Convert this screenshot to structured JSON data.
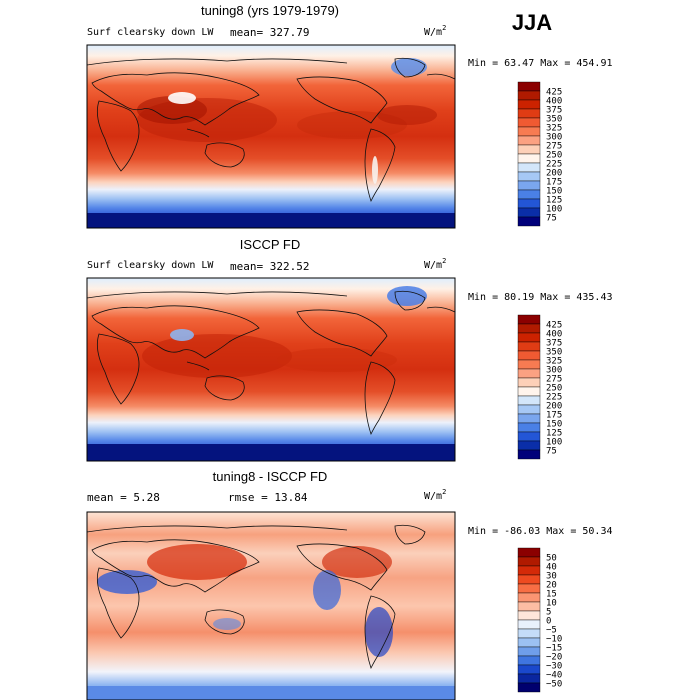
{
  "season": "JJA",
  "units_base": "W/m",
  "units_exp": "2",
  "colors": {
    "text": "#222222",
    "frame": "#000000",
    "coast": "#111111"
  },
  "panels": [
    {
      "id": "model",
      "title": "tuning8 (yrs 1979-1979)",
      "left_label": "Surf clearsky down LW",
      "mean_label": "mean= 327.79",
      "rmse_label": "",
      "minmax": "Min =  63.47 Max = 454.91",
      "kind": "abs"
    },
    {
      "id": "obs",
      "title": "ISCCP FD",
      "left_label": "Surf clearsky down LW",
      "mean_label": "mean= 322.52",
      "rmse_label": "",
      "minmax": "Min =  80.19 Max = 435.43",
      "kind": "abs"
    },
    {
      "id": "diff",
      "title": "tuning8 - ISCCP FD",
      "left_label": "mean =   5.28",
      "mean_label": "rmse =  13.84",
      "rmse_label": "",
      "minmax": "Min = -86.03 Max =  50.34",
      "kind": "diff"
    }
  ],
  "colorbars": {
    "abs": {
      "labels": [
        "425",
        "400",
        "375",
        "350",
        "325",
        "300",
        "275",
        "250",
        "225",
        "200",
        "175",
        "150",
        "125",
        "100",
        "75"
      ],
      "colors": [
        "#8b0000",
        "#b01a00",
        "#cc2200",
        "#e03c14",
        "#f05a32",
        "#f77b52",
        "#fba182",
        "#fdd0b8",
        "#fff4ec",
        "#d3e6fa",
        "#a6c8f5",
        "#7aa6ee",
        "#4a80e6",
        "#2356d6",
        "#0a2ea8",
        "#00007a"
      ]
    },
    "diff": {
      "labels": [
        "50",
        "40",
        "30",
        "20",
        "15",
        "10",
        "5",
        "0",
        "−5",
        "−10",
        "−15",
        "−20",
        "−30",
        "−40",
        "−50"
      ],
      "colors": [
        "#8b0000",
        "#b01a00",
        "#d42a08",
        "#ee4a20",
        "#f86e44",
        "#fb9572",
        "#fdbda3",
        "#fee6da",
        "#e8f1fc",
        "#c4dcf8",
        "#9cc1f2",
        "#6f9eea",
        "#3f75e0",
        "#1a48cc",
        "#0a26a0",
        "#00006e"
      ]
    }
  }
}
